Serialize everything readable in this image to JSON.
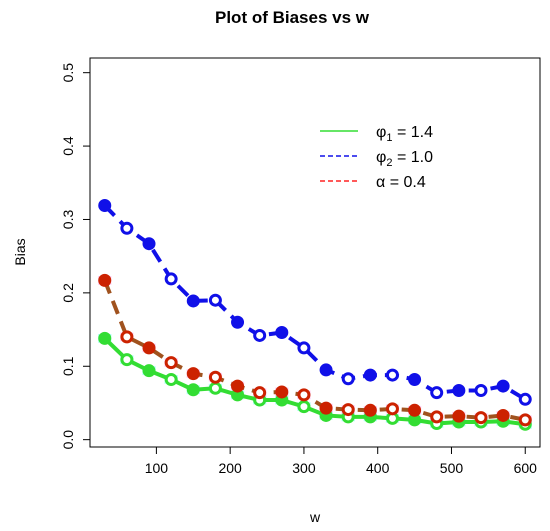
{
  "chart_data": {
    "type": "line",
    "title": "Plot of Biases vs w",
    "xlabel": "w",
    "ylabel": "Bias",
    "xlim": [
      10,
      620
    ],
    "ylim": [
      -0.01,
      0.52
    ],
    "xticks": [
      100,
      200,
      300,
      400,
      500,
      600
    ],
    "xtick_labels": [
      "100",
      "200",
      "300",
      "400",
      "500",
      "600"
    ],
    "yticks": [
      0.0,
      0.1,
      0.2,
      0.3,
      0.4,
      0.5
    ],
    "ytick_labels": [
      "0.0",
      "0.1",
      "0.2",
      "0.3",
      "0.4",
      "0.5"
    ],
    "grid": false,
    "legend_position": "top-right",
    "x": [
      30,
      60,
      90,
      120,
      150,
      180,
      210,
      240,
      270,
      300,
      330,
      360,
      390,
      420,
      450,
      480,
      510,
      540,
      570,
      600
    ],
    "series": [
      {
        "name_prefix": "φ",
        "name_sub": "1",
        "name_suffix": " = 1.4",
        "color": "#33dd33",
        "band_color": "#55ffee",
        "marker_color": "#33dd33",
        "dash": "solid",
        "values": [
          0.138,
          0.109,
          0.094,
          0.082,
          0.068,
          0.07,
          0.061,
          0.054,
          0.054,
          0.045,
          0.033,
          0.031,
          0.031,
          0.029,
          0.027,
          0.022,
          0.024,
          0.024,
          0.025,
          0.021
        ]
      },
      {
        "name_prefix": "φ",
        "name_sub": "2",
        "name_suffix": " = 1.0",
        "color": "#1010e8",
        "band_color": null,
        "marker_color": "#1010e8",
        "dash": "dashed",
        "values": [
          0.319,
          0.288,
          0.267,
          0.219,
          0.189,
          0.19,
          0.16,
          0.142,
          0.146,
          0.125,
          0.095,
          0.083,
          0.088,
          0.088,
          0.082,
          0.064,
          0.067,
          0.067,
          0.073,
          0.055
        ]
      },
      {
        "name_prefix": "α",
        "name_sub": "",
        "name_suffix": " = 0.4",
        "color": "#a0521e",
        "legend_color": "#ff2222",
        "band_color": "#ff99ee",
        "marker_color": "#cc2200",
        "dash": "dashed",
        "values": [
          0.217,
          0.14,
          0.125,
          0.105,
          0.09,
          0.085,
          0.073,
          0.064,
          0.065,
          0.061,
          0.043,
          0.041,
          0.04,
          0.042,
          0.04,
          0.031,
          0.032,
          0.03,
          0.033,
          0.027
        ]
      }
    ]
  }
}
